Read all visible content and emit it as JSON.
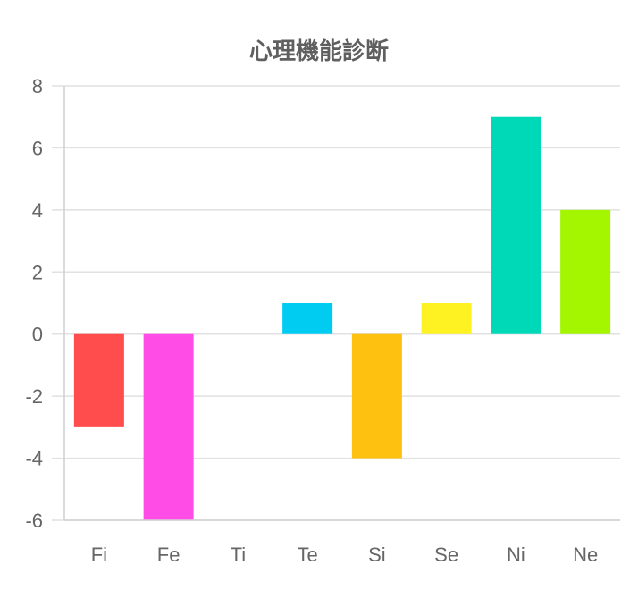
{
  "chart_data": {
    "type": "bar",
    "title": "心理機能診断",
    "xlabel": "",
    "ylabel": "",
    "categories": [
      "Fi",
      "Fe",
      "Ti",
      "Te",
      "Si",
      "Se",
      "Ni",
      "Ne"
    ],
    "values": [
      -3,
      -6,
      0,
      1,
      -4,
      1,
      7,
      4
    ],
    "colors": [
      "#ff4c4c",
      "#ff4ce6",
      "#ffffff",
      "#00ccf2",
      "#ffc10f",
      "#fff222",
      "#00d9b8",
      "#a3f500"
    ],
    "ylim": [
      -6,
      8
    ],
    "yticks": [
      8,
      6,
      4,
      2,
      0,
      -2,
      -4,
      -6
    ],
    "grid": true,
    "legend": "none"
  }
}
